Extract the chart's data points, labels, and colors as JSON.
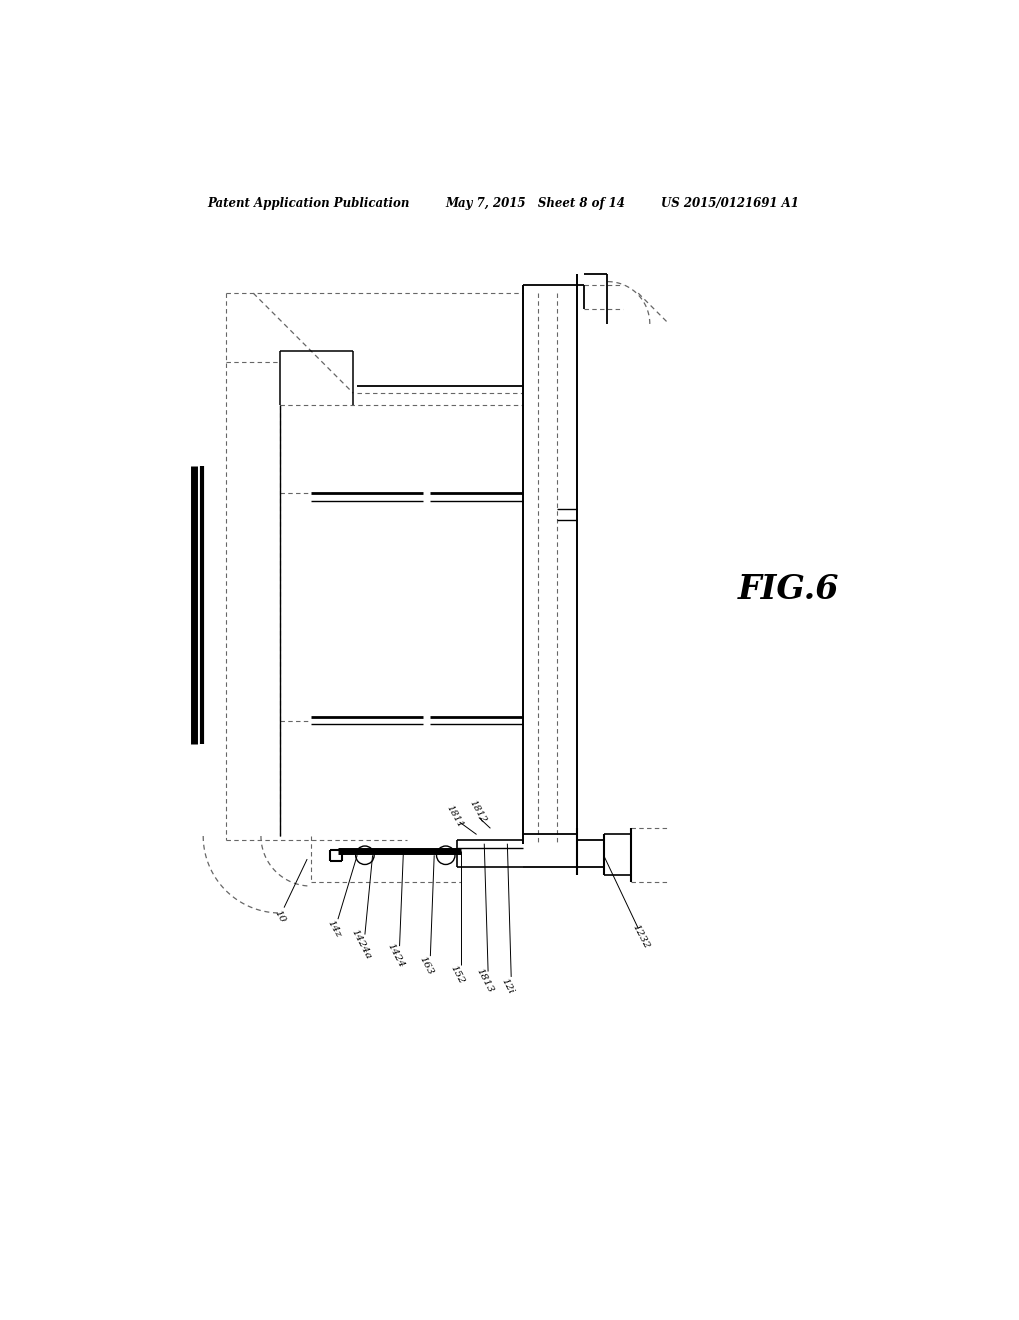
{
  "title_left": "Patent Application Publication",
  "title_mid": "May 7, 2015   Sheet 8 of 14",
  "title_right": "US 2015/0121691 A1",
  "fig_label": "FIG.6",
  "bg_color": "#ffffff",
  "line_color": "#000000",
  "gray_color": "#888888",
  "fig_label_fontsize": 24,
  "header_fontsize": 8.5
}
